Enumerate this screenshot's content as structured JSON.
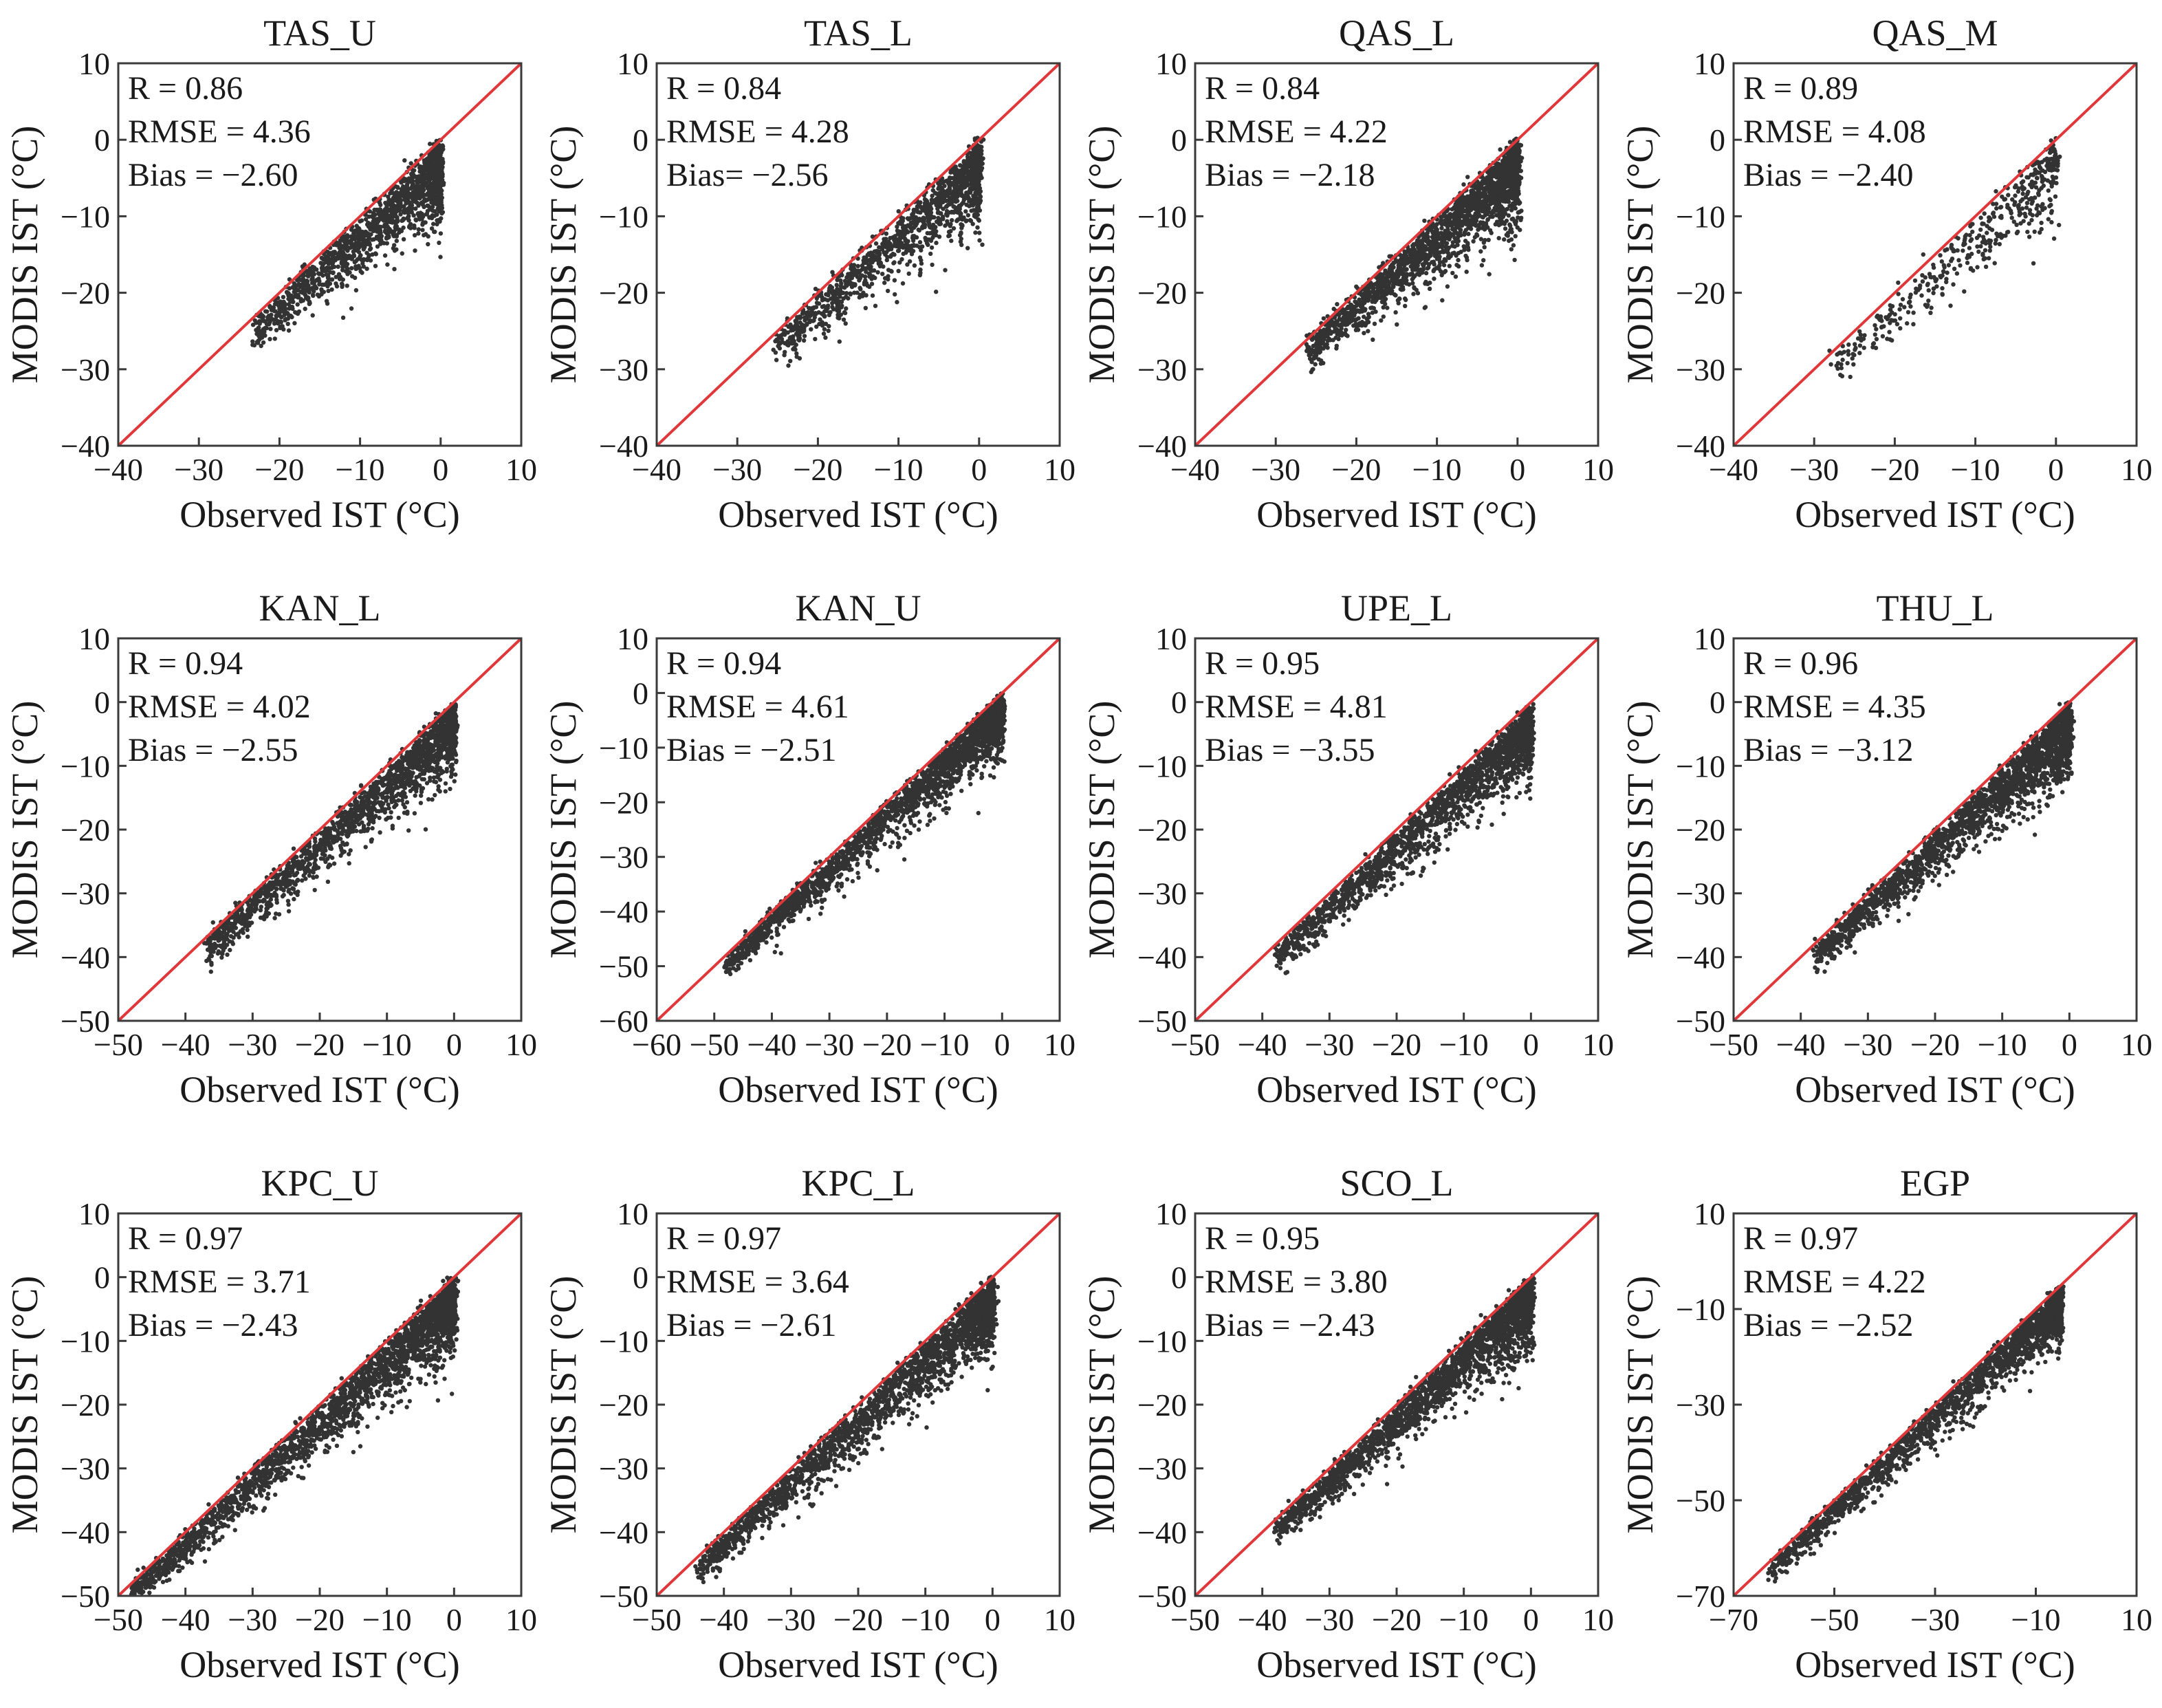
{
  "figure": {
    "x_axis_label": "Observed IST (°C)",
    "y_axis_label": "MODIS IST (°C)"
  },
  "chart_data": [
    {
      "type": "scatter",
      "title": "TAS_U",
      "xlim": [
        -40,
        10
      ],
      "ylim": [
        -40,
        10
      ],
      "xticks": [
        "−40",
        "−30",
        "−20",
        "−10",
        "0",
        "10"
      ],
      "yticks": [
        "−40",
        "−30",
        "−20",
        "−10",
        "0",
        "10"
      ],
      "xlabel": "Observed IST (°C)",
      "ylabel": "MODIS IST (°C)",
      "stats": [
        "R = 0.86",
        "RMSE = 4.36",
        "Bias = −2.60"
      ],
      "R": 0.86,
      "RMSE": 4.36,
      "bias": -2.6,
      "obs_range": [
        -23,
        0
      ],
      "reference_line": "1:1",
      "n_points": 1400,
      "seed": 11
    },
    {
      "type": "scatter",
      "title": "TAS_L",
      "xlim": [
        -40,
        10
      ],
      "ylim": [
        -40,
        10
      ],
      "xticks": [
        "−40",
        "−30",
        "−20",
        "−10",
        "0",
        "10"
      ],
      "yticks": [
        "−40",
        "−30",
        "−20",
        "−10",
        "0",
        "10"
      ],
      "xlabel": "Observed IST (°C)",
      "ylabel": "MODIS IST (°C)",
      "stats": [
        "R = 0.84",
        "RMSE = 4.28",
        "Bias= −2.56"
      ],
      "R": 0.84,
      "RMSE": 4.28,
      "bias": -2.56,
      "obs_range": [
        -25,
        0
      ],
      "reference_line": "1:1",
      "n_points": 1300,
      "seed": 23
    },
    {
      "type": "scatter",
      "title": "QAS_L",
      "xlim": [
        -40,
        10
      ],
      "ylim": [
        -40,
        10
      ],
      "xticks": [
        "−40",
        "−30",
        "−20",
        "−10",
        "0",
        "10"
      ],
      "yticks": [
        "−40",
        "−30",
        "−20",
        "−10",
        "0",
        "10"
      ],
      "xlabel": "Observed IST (°C)",
      "ylabel": "MODIS IST (°C)",
      "stats": [
        "R = 0.84",
        "RMSE = 4.22",
        "Bias = −2.18"
      ],
      "R": 0.84,
      "RMSE": 4.22,
      "bias": -2.18,
      "obs_range": [
        -26,
        0
      ],
      "reference_line": "1:1",
      "n_points": 2000,
      "seed": 37
    },
    {
      "type": "scatter",
      "title": "QAS_M",
      "xlim": [
        -40,
        10
      ],
      "ylim": [
        -40,
        10
      ],
      "xticks": [
        "−40",
        "−30",
        "−20",
        "−10",
        "0",
        "10"
      ],
      "yticks": [
        "−40",
        "−30",
        "−20",
        "−10",
        "0",
        "10"
      ],
      "xlabel": "Observed IST (°C)",
      "ylabel": "MODIS IST (°C)",
      "stats": [
        "R = 0.89",
        "RMSE = 4.08",
        "Bias = −2.40"
      ],
      "R": 0.89,
      "RMSE": 4.08,
      "bias": -2.4,
      "obs_range": [
        -28,
        0
      ],
      "reference_line": "1:1",
      "n_points": 450,
      "seed": 41
    },
    {
      "type": "scatter",
      "title": "KAN_L",
      "xlim": [
        -50,
        10
      ],
      "ylim": [
        -50,
        10
      ],
      "xticks": [
        "−50",
        "−40",
        "−30",
        "−20",
        "−10",
        "0",
        "10"
      ],
      "yticks": [
        "−50",
        "−40",
        "−30",
        "−20",
        "−10",
        "0",
        "10"
      ],
      "xlabel": "Observed IST (°C)",
      "ylabel": "MODIS IST (°C)",
      "stats": [
        "R = 0.94",
        "RMSE = 4.02",
        "Bias = −2.55"
      ],
      "R": 0.94,
      "RMSE": 4.02,
      "bias": -2.55,
      "obs_range": [
        -37,
        0
      ],
      "reference_line": "1:1",
      "n_points": 1800,
      "seed": 53
    },
    {
      "type": "scatter",
      "title": "KAN_U",
      "xlim": [
        -60,
        10
      ],
      "ylim": [
        -60,
        10
      ],
      "xticks": [
        "−60",
        "−50",
        "−40",
        "−30",
        "−20",
        "−10",
        "0",
        "10"
      ],
      "yticks": [
        "−60",
        "−50",
        "−40",
        "−30",
        "−20",
        "−10",
        "0",
        "10"
      ],
      "xlabel": "Observed IST (°C)",
      "ylabel": "MODIS IST (°C)",
      "stats": [
        "R = 0.94",
        "RMSE = 4.61",
        "Bias = −2.51"
      ],
      "R": 0.94,
      "RMSE": 4.61,
      "bias": -2.51,
      "obs_range": [
        -48,
        0
      ],
      "reference_line": "1:1",
      "n_points": 2200,
      "seed": 67
    },
    {
      "type": "scatter",
      "title": "UPE_L",
      "xlim": [
        -50,
        10
      ],
      "ylim": [
        -50,
        10
      ],
      "xticks": [
        "−50",
        "−40",
        "−30",
        "−20",
        "−10",
        "0",
        "10"
      ],
      "yticks": [
        "−50",
        "−40",
        "−30",
        "−20",
        "−10",
        "0",
        "10"
      ],
      "xlabel": "Observed IST (°C)",
      "ylabel": "MODIS IST (°C)",
      "stats": [
        "R = 0.95",
        "RMSE = 4.81",
        "Bias = −3.55"
      ],
      "R": 0.95,
      "RMSE": 4.81,
      "bias": -3.55,
      "obs_range": [
        -38,
        0
      ],
      "reference_line": "1:1",
      "n_points": 1900,
      "seed": 79
    },
    {
      "type": "scatter",
      "title": "THU_L",
      "xlim": [
        -50,
        10
      ],
      "ylim": [
        -50,
        10
      ],
      "xticks": [
        "−50",
        "−40",
        "−30",
        "−20",
        "−10",
        "0",
        "10"
      ],
      "yticks": [
        "−50",
        "−40",
        "−30",
        "−20",
        "−10",
        "0",
        "10"
      ],
      "xlabel": "Observed IST (°C)",
      "ylabel": "MODIS IST (°C)",
      "stats": [
        "R = 0.96",
        "RMSE = 4.35",
        "Bias = −3.12"
      ],
      "R": 0.96,
      "RMSE": 4.35,
      "bias": -3.12,
      "obs_range": [
        -38,
        0
      ],
      "reference_line": "1:1",
      "n_points": 2200,
      "seed": 83
    },
    {
      "type": "scatter",
      "title": "KPC_U",
      "xlim": [
        -50,
        10
      ],
      "ylim": [
        -50,
        10
      ],
      "xticks": [
        "−50",
        "−40",
        "−30",
        "−20",
        "−10",
        "0",
        "10"
      ],
      "yticks": [
        "−50",
        "−40",
        "−30",
        "−20",
        "−10",
        "0",
        "10"
      ],
      "xlabel": "Observed IST (°C)",
      "ylabel": "MODIS IST (°C)",
      "stats": [
        "R = 0.97",
        "RMSE = 3.71",
        "Bias = −2.43"
      ],
      "R": 0.97,
      "RMSE": 3.71,
      "bias": -2.43,
      "obs_range": [
        -48,
        0
      ],
      "reference_line": "1:1",
      "n_points": 2600,
      "seed": 97
    },
    {
      "type": "scatter",
      "title": "KPC_L",
      "xlim": [
        -50,
        10
      ],
      "ylim": [
        -50,
        10
      ],
      "xticks": [
        "−50",
        "−40",
        "−30",
        "−20",
        "−10",
        "0",
        "10"
      ],
      "yticks": [
        "−50",
        "−40",
        "−30",
        "−20",
        "−10",
        "0",
        "10"
      ],
      "xlabel": "Observed IST (°C)",
      "ylabel": "MODIS IST (°C)",
      "stats": [
        "R = 0.97",
        "RMSE = 3.64",
        "Bias = −2.61"
      ],
      "R": 0.97,
      "RMSE": 3.64,
      "bias": -2.61,
      "obs_range": [
        -44,
        0
      ],
      "reference_line": "1:1",
      "n_points": 2300,
      "seed": 101
    },
    {
      "type": "scatter",
      "title": "SCO_L",
      "xlim": [
        -50,
        10
      ],
      "ylim": [
        -50,
        10
      ],
      "xticks": [
        "−50",
        "−40",
        "−30",
        "−20",
        "−10",
        "0",
        "10"
      ],
      "yticks": [
        "−50",
        "−40",
        "−30",
        "−20",
        "−10",
        "0",
        "10"
      ],
      "xlabel": "Observed IST (°C)",
      "ylabel": "MODIS IST (°C)",
      "stats": [
        "R = 0.95",
        "RMSE = 3.80",
        "Bias = −2.43"
      ],
      "R": 0.95,
      "RMSE": 3.8,
      "bias": -2.43,
      "obs_range": [
        -38,
        0
      ],
      "reference_line": "1:1",
      "n_points": 2300,
      "seed": 113
    },
    {
      "type": "scatter",
      "title": "EGP",
      "xlim": [
        -70,
        10
      ],
      "ylim": [
        -70,
        10
      ],
      "xticks": [
        "−70",
        "−50",
        "−30",
        "−10",
        "10"
      ],
      "yticks": [
        "−70",
        "−50",
        "−30",
        "−10",
        "10"
      ],
      "xlabel": "Observed IST (°C)",
      "ylabel": "MODIS IST (°C)",
      "stats": [
        "R = 0.97",
        "RMSE = 4.22",
        "Bias = −2.52"
      ],
      "R": 0.97,
      "RMSE": 4.22,
      "bias": -2.52,
      "obs_range": [
        -63,
        -5
      ],
      "reference_line": "1:1",
      "n_points": 1900,
      "seed": 127
    }
  ]
}
